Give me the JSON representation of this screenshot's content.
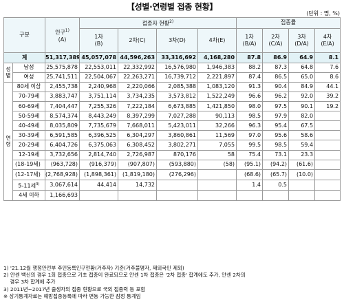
{
  "title": "【성별·연령별 접종 현황】",
  "unit": "(단위 : 명, %)",
  "header": {
    "group": "구분",
    "population": "인구",
    "population_sup": "1)",
    "population_sub": "(A)",
    "vaccinated_group": "접종자 현황",
    "vaccinated_group_sup": "2)",
    "rate_group": "접종률",
    "dose1": "1차\n(B)",
    "dose2": "2차(C)",
    "dose3": "3차(D)",
    "dose4": "4차(E)",
    "r1": "1차\n(B/A)",
    "r2": "2차\n(C/A)",
    "r3": "3차\n(D/A)",
    "r4": "4차\n(E/A)"
  },
  "side_labels": {
    "sex": "성별",
    "age": "연령"
  },
  "rows": [
    {
      "label": "계",
      "pop": "51,317,389",
      "d1": "45,057,078",
      "d2": "44,596,263",
      "d3": "33,316,692",
      "d4": "4,168,280",
      "r1": "87.8",
      "r2": "86.9",
      "r3": "64.9",
      "r4": "8.1"
    },
    {
      "label": "남성",
      "pop": "25,575,878",
      "d1": "22,553,011",
      "d2": "22,332,992",
      "d3": "16,576,980",
      "d4": "1,946,383",
      "r1": "88.2",
      "r2": "87.3",
      "r3": "64.8",
      "r4": "7.6"
    },
    {
      "label": "여성",
      "pop": "25,741,511",
      "d1": "22,504,067",
      "d2": "22,263,271",
      "d3": "16,739,712",
      "d4": "2,221,897",
      "r1": "87.4",
      "r2": "86.5",
      "r3": "65.0",
      "r4": "8.6"
    },
    {
      "label": "80세 이상",
      "pop": "2,455,738",
      "d1": "2,240,968",
      "d2": "2,220,066",
      "d3": "2,085,388",
      "d4": "1,083,120",
      "r1": "91.3",
      "r2": "90.4",
      "r3": "84.9",
      "r4": "44.1"
    },
    {
      "label": "70-79세",
      "pop": "3,883,747",
      "d1": "3,751,114",
      "d2": "3,734,235",
      "d3": "3,573,812",
      "d4": "1,522,249",
      "r1": "96.6",
      "r2": "96.2",
      "r3": "92.0",
      "r4": "39.2"
    },
    {
      "label": "60-69세",
      "pop": "7,404,447",
      "d1": "7,255,326",
      "d2": "7,222,184",
      "d3": "6,673,885",
      "d4": "1,421,850",
      "r1": "98.0",
      "r2": "97.5",
      "r3": "90.1",
      "r4": "19.2"
    },
    {
      "label": "50-59세",
      "pop": "8,574,374",
      "d1": "8,443,249",
      "d2": "8,397,299",
      "d3": "7,027,288",
      "d4": "90,113",
      "r1": "98.5",
      "r2": "97.9",
      "r3": "82.0",
      "r4": ""
    },
    {
      "label": "40-49세",
      "pop": "8,035,809",
      "d1": "7,735,679",
      "d2": "7,668,011",
      "d3": "5,423,011",
      "d4": "32,266",
      "r1": "96.3",
      "r2": "95.4",
      "r3": "67.5",
      "r4": ""
    },
    {
      "label": "30-39세",
      "pop": "6,591,585",
      "d1": "6,396,525",
      "d2": "6,304,297",
      "d3": "3,860,861",
      "d4": "11,569",
      "r1": "97.0",
      "r2": "95.6",
      "r3": "58.6",
      "r4": ""
    },
    {
      "label": "20-29세",
      "pop": "6,404,726",
      "d1": "6,375,063",
      "d2": "6,308,452",
      "d3": "3,802,271",
      "d4": "7,055",
      "r1": "99.5",
      "r2": "98.5",
      "r3": "59.4",
      "r4": ""
    },
    {
      "label": "12-19세",
      "pop": "3,732,656",
      "d1": "2,814,740",
      "d2": "2,726,987",
      "d3": "870,176",
      "d4": "58",
      "r1": "75.4",
      "r2": "73.1",
      "r3": "23.3",
      "r4": ""
    },
    {
      "label": "(18-19세)",
      "pop": "(963,728)",
      "d1": "(916,379)",
      "d2": "(907,807)",
      "d3": "(593,880)",
      "d4": "(58)",
      "r1": "(95.1)",
      "r2": "(94.2)",
      "r3": "(61.6)",
      "r4": ""
    },
    {
      "label": "(12-17세)",
      "pop": "(2,768,928)",
      "d1": "(1,898,361)",
      "d2": "(1,819,180)",
      "d3": "(276,296)",
      "d4": "",
      "r1": "(68.6)",
      "r2": "(65.7)",
      "r3": "(10.0)",
      "r4": ""
    },
    {
      "label": "5-11세",
      "label_sup": "3)",
      "pop": "3,067,614",
      "d1": "44,414",
      "d2": "14,732",
      "d3": "",
      "d4": "",
      "r1": "1.4",
      "r2": "0.5",
      "r3": "",
      "r4": ""
    },
    {
      "label": "4세 이하",
      "pop": "1,166,693",
      "d1": "",
      "d2": "",
      "d3": "",
      "d4": "",
      "r1": "",
      "r2": "",
      "r3": "",
      "r4": ""
    }
  ],
  "notes": [
    "1) '21.12월 행정안전부 주민등록인구현황(거주자) 기준(거주불명자, 재외국민 제외)",
    "2) 얀센 백신의 경우 1회 접종으로 기초 접종이 완료되므로 얀센 1차 접종은 '2차 접종' 합계에도 추가, 얀센 2차의",
    "    경우 3차 합계에 추가",
    "3) 2011년~2017년 출생자의 접종 현황으로 국외 접종력 등 포함",
    "※ 상기통계자료는 예방접종등록에 따라 변동 가능한 잠정 통계임"
  ]
}
